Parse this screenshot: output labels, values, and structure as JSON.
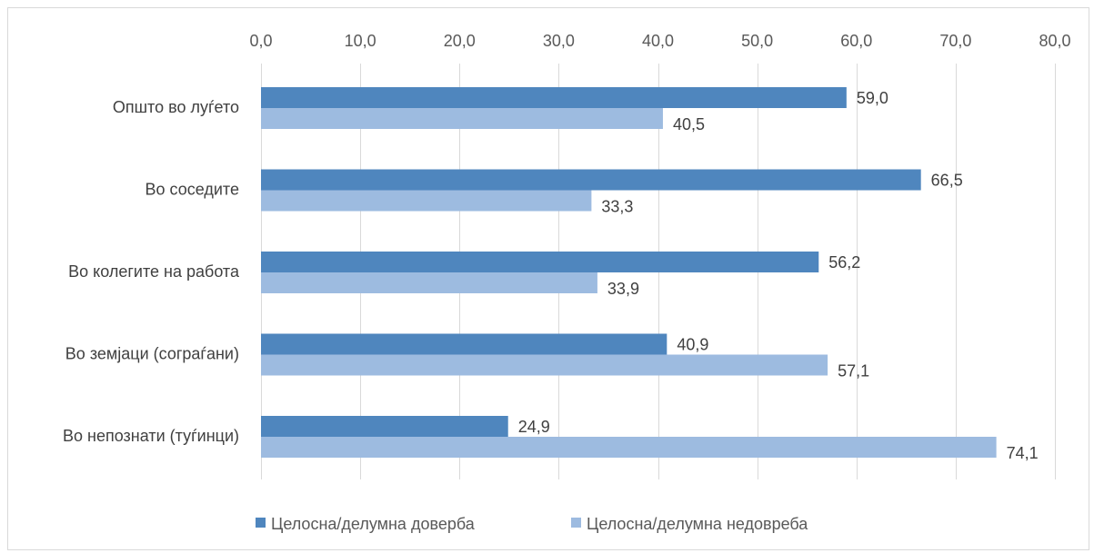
{
  "chart_data": {
    "type": "bar",
    "orientation": "horizontal",
    "categories": [
      "Општо во луѓето",
      "Во соседите",
      "Во колегите на работа",
      "Во земјаци (сограѓани)",
      "Во непознати (туѓинци)"
    ],
    "series": [
      {
        "name": "Целосна/делумна доверба",
        "color": "#4f86be",
        "values": [
          59.0,
          66.5,
          56.2,
          40.9,
          24.9
        ]
      },
      {
        "name": "Целосна/делумна недовреба",
        "color": "#9dbbe0",
        "values": [
          40.5,
          33.3,
          33.9,
          57.1,
          74.1
        ]
      }
    ],
    "data_labels": [
      [
        "59,0",
        "66,5",
        "56,2",
        "40,9",
        "24,9"
      ],
      [
        "40,5",
        "33,3",
        "33,9",
        "57,1",
        "74,1"
      ]
    ],
    "xlim": [
      0,
      80
    ],
    "xticks": [
      0,
      10,
      20,
      30,
      40,
      50,
      60,
      70,
      80
    ],
    "xtick_labels": [
      "0,0",
      "10,0",
      "20,0",
      "30,0",
      "40,0",
      "50,0",
      "60,0",
      "70,0",
      "80,0"
    ],
    "x_axis_position": "top",
    "grid": true,
    "legend_position": "bottom",
    "title": "",
    "xlabel": "",
    "ylabel": ""
  }
}
